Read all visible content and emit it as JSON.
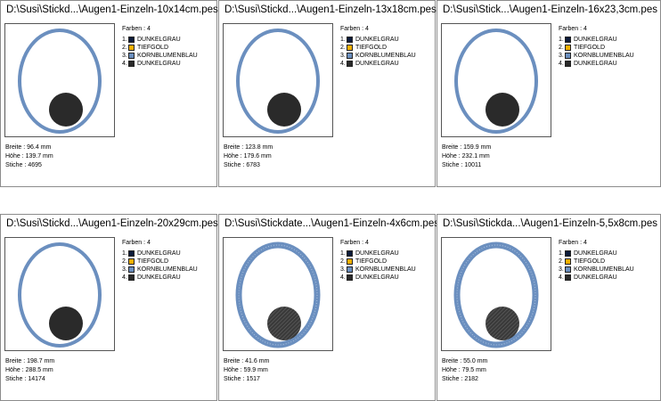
{
  "colors_header": "Farben : 4",
  "labels": {
    "width": "Breite :",
    "height": "Höhe :",
    "stitches": "Stiche :"
  },
  "thread_colors": [
    {
      "num": "1.",
      "name": "DUNKELGRAU",
      "hex": "#0d1b3a"
    },
    {
      "num": "2.",
      "name": "TIEFGOLD",
      "hex": "#f5b000"
    },
    {
      "num": "3.",
      "name": "KORNBLUMENBLAU",
      "hex": "#6b8fbf"
    },
    {
      "num": "4.",
      "name": "DUNKELGRAU",
      "hex": "#2a2a2a"
    }
  ],
  "cards": [
    {
      "title": "D:\\Susi\\Stickd...\\Augen1-Einzeln-10x14cm.pes",
      "width": "96.4 mm",
      "height": "139.7 mm",
      "stitches": "4695",
      "fill": "solid"
    },
    {
      "title": "D:\\Susi\\Stickd...\\Augen1-Einzeln-13x18cm.pes",
      "width": "123.8 mm",
      "height": "179.6 mm",
      "stitches": "6783",
      "fill": "solid"
    },
    {
      "title": "D:\\Susi\\Stick...\\Augen1-Einzeln-16x23,3cm.pes",
      "width": "159.9 mm",
      "height": "232.1 mm",
      "stitches": "10011",
      "fill": "solid"
    },
    {
      "title": "D:\\Susi\\Stickd...\\Augen1-Einzeln-20x29cm.pes",
      "width": "198.7 mm",
      "height": "288.5 mm",
      "stitches": "14174",
      "fill": "solid"
    },
    {
      "title": "D:\\Susi\\Stickdate...\\Augen1-Einzeln-4x6cm.pes",
      "width": "41.6 mm",
      "height": "59.9 mm",
      "stitches": "1517",
      "fill": "stitched"
    },
    {
      "title": "D:\\Susi\\Stickda...\\Augen1-Einzeln-5,5x8cm.pes",
      "width": "55.0 mm",
      "height": "79.5 mm",
      "stitches": "2182",
      "fill": "stitched"
    }
  ]
}
